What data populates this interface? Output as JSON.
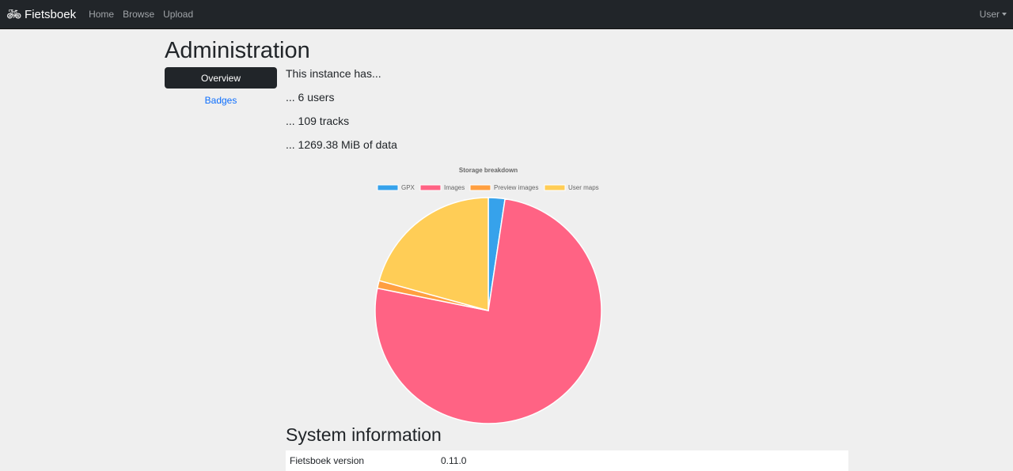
{
  "nav": {
    "brand": "Fietsboek",
    "items": [
      "Home",
      "Browse",
      "Upload"
    ],
    "user": "User"
  },
  "page_title": "Administration",
  "sidebar": {
    "items": [
      {
        "label": "Overview",
        "active": true
      },
      {
        "label": "Badges",
        "active": false
      }
    ]
  },
  "stats": {
    "intro": "This instance has...",
    "users": "... 6 users",
    "tracks": "... 109 tracks",
    "data": "... 1269.38 MiB of data"
  },
  "chart_data": {
    "type": "pie",
    "title": "Storage breakdown",
    "legend_position": "top",
    "categories": [
      "GPX",
      "Images",
      "Preview images",
      "User maps"
    ],
    "values": [
      30,
      962,
      14,
      263
    ],
    "colors": [
      "#36a2eb",
      "#ff6384",
      "#ff9f40",
      "#ffcd56"
    ]
  },
  "system": {
    "title": "System information",
    "rows": [
      {
        "label": "Fietsboek version",
        "value": "0.11.0"
      }
    ]
  }
}
